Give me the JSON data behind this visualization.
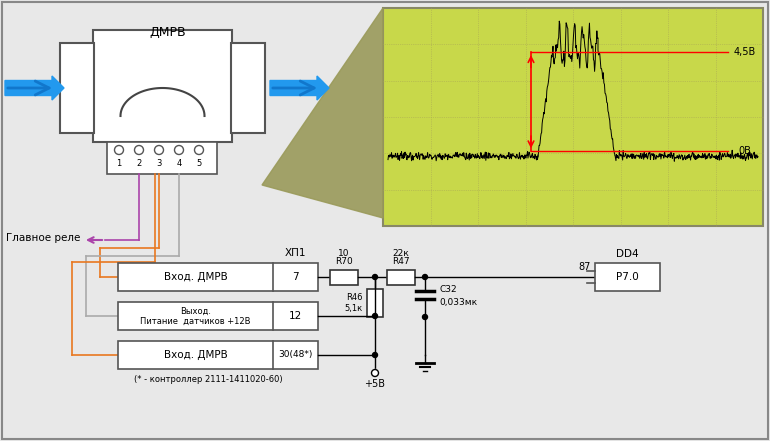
{
  "dmrv_label": "ДМРВ",
  "glavnoe_rele_label": "Главное реле",
  "xp1_label": "ХП1",
  "dd4_label": "DD4",
  "box1_label": "Вход. ДМРВ",
  "box1_num": "7",
  "box2_label1": "Выход.",
  "box2_label2": "Питание  датчиков +12В",
  "box2_num": "12",
  "box3_label": "Вход. ДМРВ",
  "box3_num": "30(48*)",
  "box3_note": "(* - контроллер 2111-1411020-60)",
  "r70_label": "R70",
  "r70_val": "10",
  "r47_label": "R47",
  "r47_val": "22к",
  "r46_label": "R46",
  "r46_val": "5,1к",
  "c32_label": "C32",
  "c32_val": "0,033мк",
  "p70_label": "P7.0",
  "pin87": "87",
  "scope_45v": "4,5В",
  "scope_0v": "0В",
  "plusv_label": "+5В",
  "green_bg": "#c8d84a",
  "olive_bg": "#9a9a5a",
  "wire_orange": "#e87820",
  "wire_gray": "#aaaaaa",
  "wire_purple": "#aa44aa",
  "wire_lightgray": "#cccccc",
  "fig_bg": "#e8e8e8"
}
